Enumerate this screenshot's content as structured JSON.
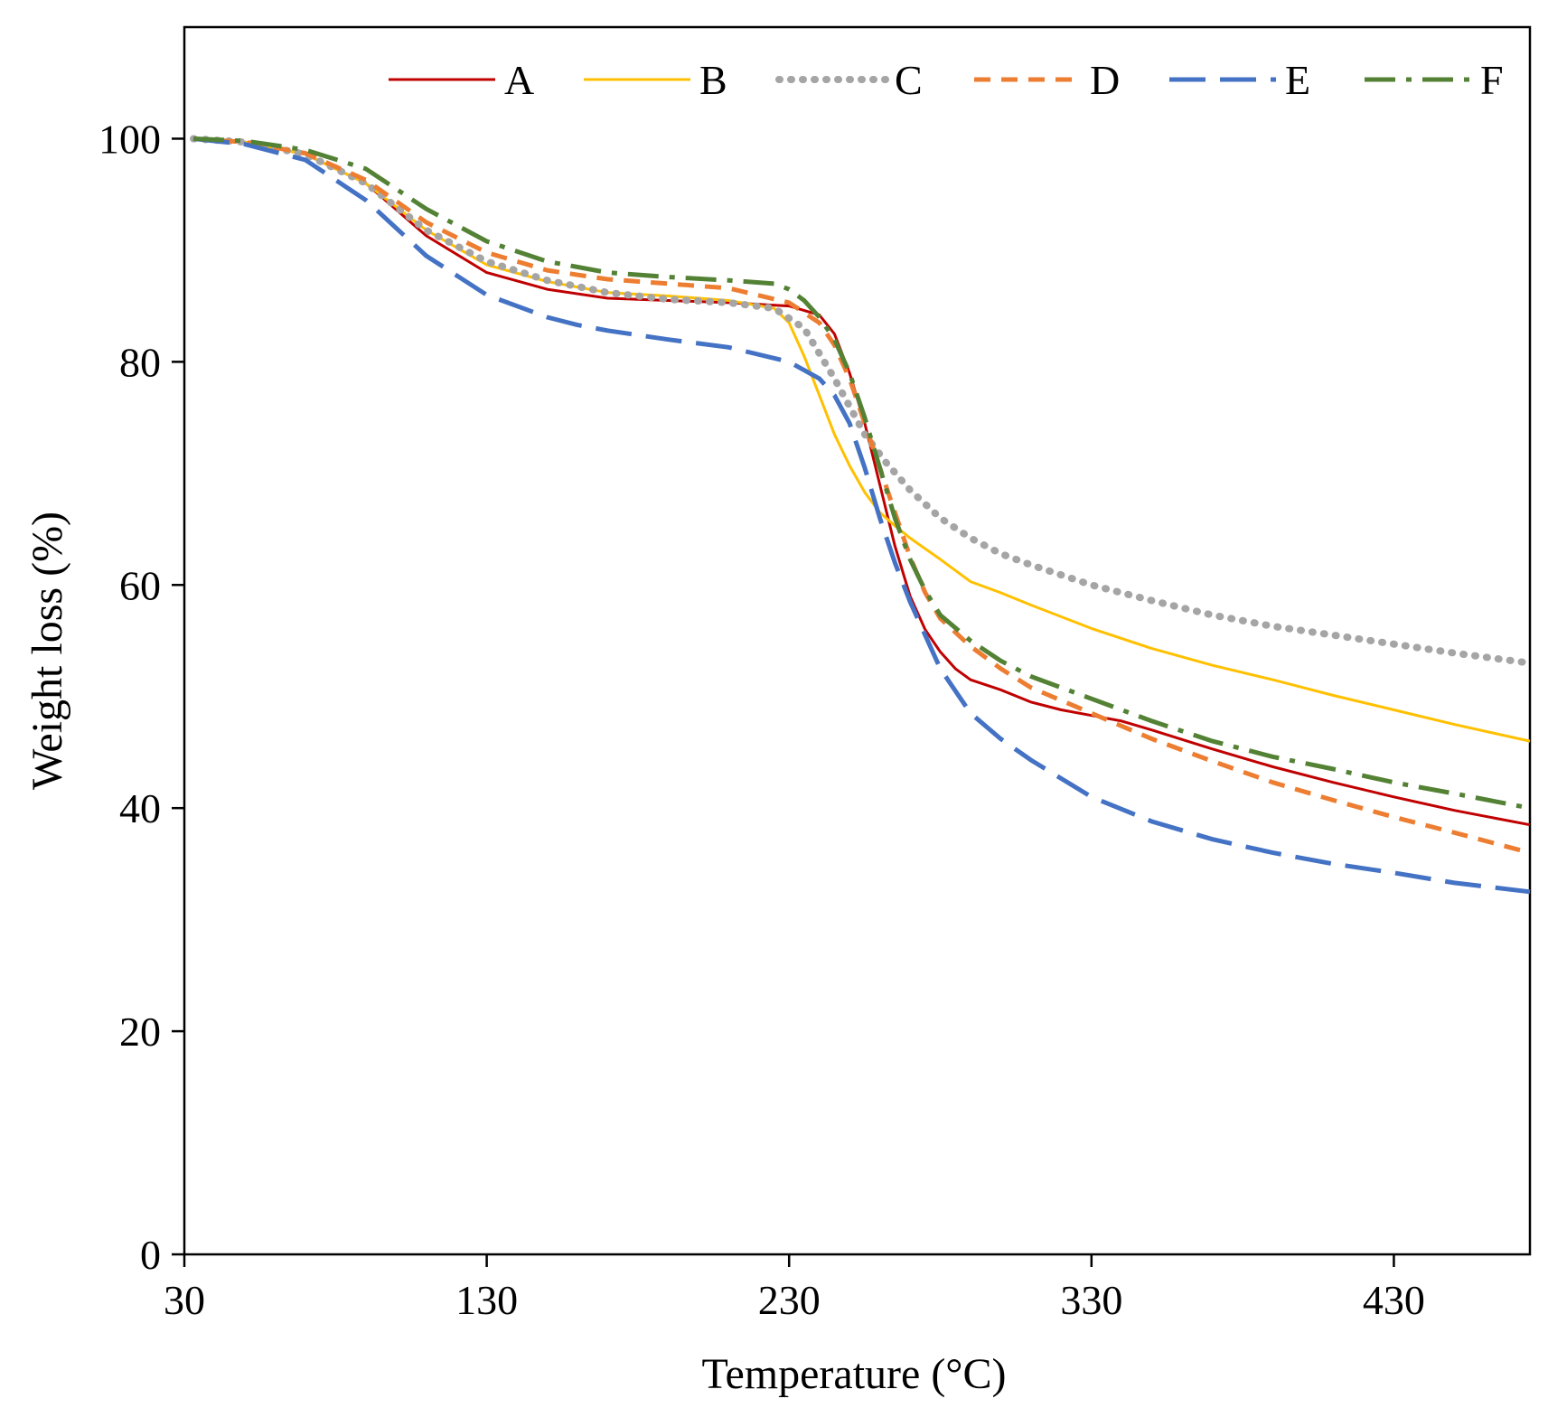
{
  "chart_data": {
    "type": "line",
    "title": "",
    "xlabel": "Temperature (°C)",
    "ylabel": "Weight loss (%)",
    "xlim": [
      30,
      475
    ],
    "ylim": [
      0,
      100
    ],
    "xticks": [
      30,
      130,
      230,
      330,
      430
    ],
    "yticks": [
      0,
      20,
      40,
      60,
      80,
      100
    ],
    "grid": false,
    "legend_position": "top",
    "series": [
      {
        "name": "A",
        "color": "#C00000",
        "style": "solid",
        "x": [
          33,
          50,
          70,
          90,
          110,
          130,
          150,
          170,
          190,
          210,
          230,
          240,
          245,
          250,
          255,
          260,
          265,
          270,
          275,
          280,
          285,
          290,
          300,
          310,
          320,
          330,
          340,
          350,
          370,
          390,
          410,
          430,
          450,
          475
        ],
        "y": [
          100,
          99.7,
          98.6,
          96,
          91.3,
          88,
          86.5,
          85.7,
          85.5,
          85.3,
          85,
          84.2,
          82.5,
          79,
          74.5,
          69,
          63.5,
          59,
          56,
          54,
          52.5,
          51.5,
          50.6,
          49.5,
          48.8,
          48.3,
          47.8,
          47,
          45.3,
          43.7,
          42.3,
          41,
          39.8,
          38.5
        ]
      },
      {
        "name": "B",
        "color": "#FFC000",
        "style": "solid",
        "x": [
          33,
          50,
          70,
          90,
          110,
          130,
          150,
          170,
          190,
          210,
          225,
          230,
          235,
          240,
          245,
          250,
          255,
          260,
          265,
          270,
          280,
          290,
          300,
          310,
          330,
          350,
          370,
          390,
          410,
          430,
          450,
          475
        ],
        "y": [
          100,
          99.7,
          98.6,
          96,
          91.8,
          88.7,
          87.2,
          86.2,
          85.9,
          85.5,
          84.8,
          83.5,
          80.5,
          77,
          73.5,
          70.7,
          68.3,
          66.5,
          65.3,
          64.2,
          62.3,
          60.3,
          59.3,
          58.2,
          56.1,
          54.3,
          52.8,
          51.5,
          50.1,
          48.8,
          47.5,
          46
        ]
      },
      {
        "name": "C",
        "color": "#A5A5A5",
        "style": "dotted",
        "x": [
          33,
          50,
          70,
          90,
          110,
          130,
          150,
          170,
          190,
          210,
          225,
          235,
          245,
          255,
          262,
          270,
          280,
          290,
          300,
          310,
          330,
          350,
          370,
          390,
          410,
          430,
          450,
          475
        ],
        "y": [
          100,
          99.7,
          98.6,
          96,
          91.8,
          89,
          87.3,
          86.2,
          85.6,
          85.3,
          84.8,
          83,
          78.5,
          73.5,
          71,
          68.5,
          66,
          64.2,
          62.8,
          61.8,
          60,
          58.6,
          57.3,
          56.3,
          55.5,
          54.7,
          53.9,
          53
        ]
      },
      {
        "name": "D",
        "color": "#ED7D31",
        "style": "dashed",
        "x": [
          33,
          50,
          70,
          90,
          110,
          130,
          150,
          170,
          190,
          210,
          230,
          240,
          245,
          250,
          255,
          260,
          265,
          270,
          275,
          280,
          290,
          300,
          310,
          330,
          350,
          370,
          390,
          410,
          430,
          450,
          475
        ],
        "y": [
          100,
          99.7,
          98.7,
          96.3,
          92.5,
          89.8,
          88.2,
          87.4,
          87,
          86.6,
          85.3,
          83.5,
          81.5,
          78.5,
          74.5,
          70.5,
          66.5,
          62.5,
          59.3,
          57,
          54.5,
          52.5,
          50.8,
          48.5,
          46.2,
          44.2,
          42.3,
          40.7,
          39.2,
          37.8,
          36
        ]
      },
      {
        "name": "E",
        "color": "#4472C4",
        "style": "longdash",
        "x": [
          33,
          50,
          70,
          90,
          110,
          130,
          150,
          160,
          170,
          190,
          210,
          230,
          240,
          245,
          250,
          255,
          260,
          265,
          270,
          275,
          280,
          290,
          300,
          310,
          330,
          350,
          370,
          390,
          410,
          430,
          450,
          475
        ],
        "y": [
          100,
          99.5,
          98.1,
          94.5,
          89.5,
          86,
          84,
          83.3,
          82.8,
          82,
          81.3,
          80,
          78.5,
          77,
          74.5,
          70.5,
          66,
          62,
          58.5,
          55.5,
          52.5,
          48.5,
          46.2,
          44.3,
          41,
          38.8,
          37.2,
          36,
          35,
          34.2,
          33.3,
          32.5
        ]
      },
      {
        "name": "F",
        "color": "#548235",
        "style": "dashdot",
        "x": [
          33,
          50,
          70,
          90,
          110,
          130,
          150,
          170,
          190,
          210,
          225,
          230,
          235,
          240,
          245,
          250,
          255,
          260,
          265,
          270,
          275,
          280,
          290,
          300,
          310,
          330,
          350,
          370,
          390,
          410,
          430,
          450,
          475
        ],
        "y": [
          100,
          99.8,
          99,
          97.3,
          93.7,
          90.8,
          89,
          88,
          87.6,
          87.3,
          87,
          86.5,
          85.5,
          84,
          82,
          79,
          75,
          70.5,
          66,
          62.3,
          59.5,
          57.3,
          55,
          53.2,
          51.8,
          49.8,
          47.8,
          46,
          44.6,
          43.5,
          42.3,
          41.3,
          40
        ]
      }
    ]
  }
}
